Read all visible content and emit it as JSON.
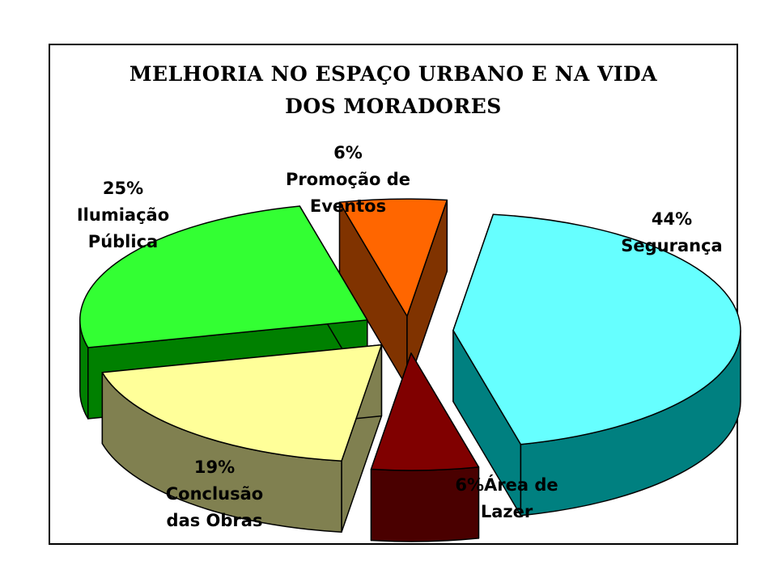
{
  "chart_data": {
    "type": "pie",
    "style": "3d-exploded",
    "title": [
      "MELHORIA NO ESPAÇO URBANO E NA VIDA",
      "DOS MORADORES"
    ],
    "slices": [
      {
        "category": "Segurança",
        "percent_label": "44%",
        "value": 44,
        "top_color": "#66ffff",
        "side_color": "#008080"
      },
      {
        "category": "Área de Lazer",
        "percent_label": "6%",
        "value": 6,
        "top_color": "#800000",
        "side_color": "#4a0000"
      },
      {
        "category": "Conclusão das Obras",
        "percent_label": "19%",
        "value": 19,
        "top_color": "#ffff99",
        "side_color": "#808050"
      },
      {
        "category": "Iluminação Pública",
        "percent_label": "25%",
        "value": 25,
        "top_color": "#33ff33",
        "side_color": "#008000"
      },
      {
        "category": "Promoção de Eventos",
        "percent_label": "6%",
        "value": 6,
        "top_color": "#ff6600",
        "side_color": "#803300"
      }
    ],
    "labels": [
      {
        "lines": [
          "44%",
          "Segurança"
        ]
      },
      {
        "lines": [
          "6%Área de",
          "Lazer"
        ]
      },
      {
        "lines": [
          "19%",
          "Conclusão",
          "das Obras"
        ]
      },
      {
        "lines": [
          "25%",
          "Ilumiação",
          "Pública"
        ]
      },
      {
        "lines": [
          "6%",
          "Promoção de",
          "Eventos"
        ]
      }
    ]
  }
}
